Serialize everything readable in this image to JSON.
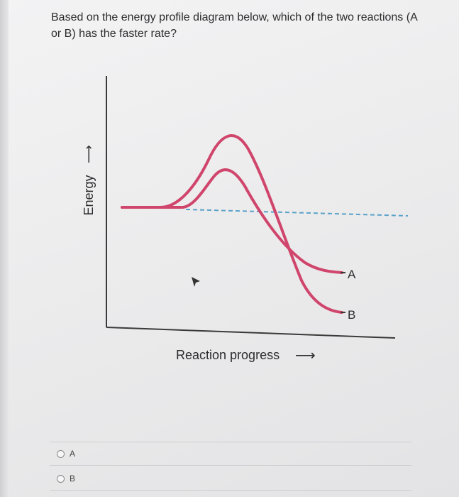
{
  "question": {
    "line1": "Based on the energy profile diagram below, which of the two reactions (A",
    "line2": "or B) has the faster rate?"
  },
  "diagram": {
    "y_axis_label": "Energy",
    "x_axis_label": "Reaction progress",
    "curve_a_label": "A",
    "curve_b_label": "B",
    "curve_color": "#d0456b",
    "dashed_color": "#5aa2c8",
    "arrow_glyph": "⟶"
  },
  "options": [
    {
      "label": "A"
    },
    {
      "label": "B"
    }
  ]
}
